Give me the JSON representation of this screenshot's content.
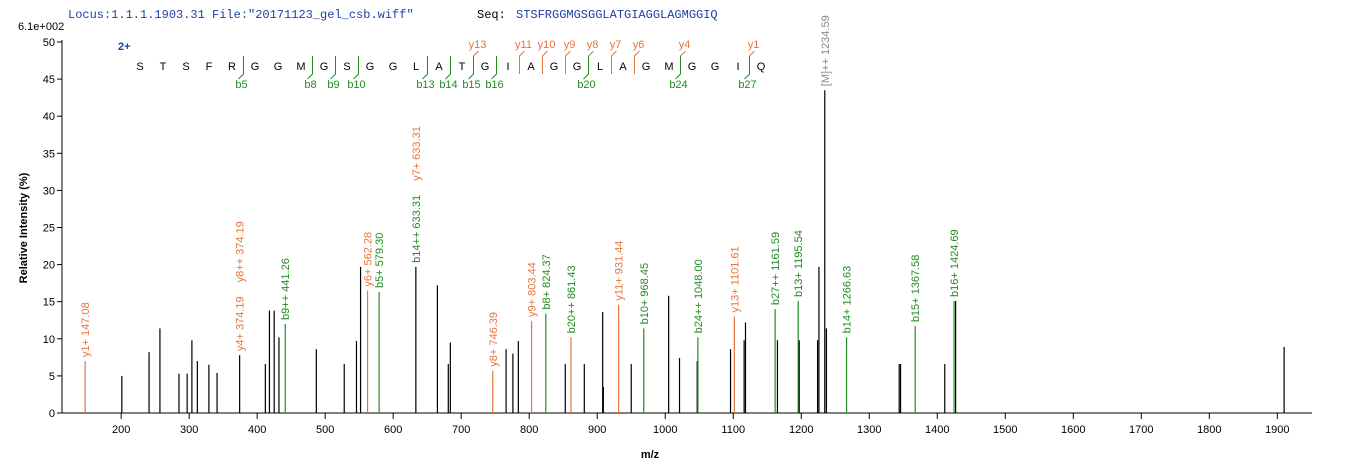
{
  "header": {
    "locus": "Locus:1.1.1.1903.31 File:\"20171123_gel_csb.wiff\"",
    "seq_label": "Seq:",
    "seq": "STSFRGGMGSGGLATGIAGGLAGMGGIQ"
  },
  "chart_data": {
    "type": "spectrum",
    "y_scale_label": "6.1e+002",
    "xlabel": "m/z",
    "ylabel": "Relative   Intensity (%)",
    "xlim": [
      113,
      1951
    ],
    "ylim": [
      0,
      50
    ],
    "xticks": [
      200,
      300,
      400,
      500,
      600,
      700,
      800,
      900,
      1000,
      1100,
      1200,
      1300,
      1400,
      1500,
      1600,
      1700,
      1800,
      1900
    ],
    "yticks": [
      0,
      5,
      10,
      15,
      20,
      25,
      30,
      35,
      40,
      45,
      50
    ],
    "x": [
      147.08,
      201,
      241,
      257,
      285,
      297,
      304,
      312,
      329,
      341,
      374.19,
      412,
      418,
      425,
      432,
      441.26,
      487,
      528,
      546,
      552,
      562.28,
      579.3,
      633.31,
      665,
      681,
      684,
      746.39,
      766,
      776,
      784,
      803.44,
      824.37,
      853,
      861.43,
      881,
      908,
      909,
      931.44,
      950,
      968.45,
      1005,
      1021,
      1047,
      1048.0,
      1096,
      1101.61,
      1116,
      1118,
      1161.59,
      1165,
      1195.54,
      1197,
      1224,
      1226,
      1234.59,
      1237,
      1266.63,
      1344,
      1346,
      1367.58,
      1411,
      1424.69,
      1427,
      1910
    ],
    "values": [
      7,
      5,
      8.2,
      11.4,
      5.3,
      5.3,
      9.8,
      7,
      6.5,
      5.4,
      7.8,
      6.6,
      13.8,
      13.8,
      10.2,
      12,
      8.6,
      6.6,
      9.7,
      19.7,
      16.5,
      16.3,
      19.7,
      17.2,
      6.6,
      9.5,
      5.7,
      8.6,
      8,
      9.7,
      12.4,
      13.4,
      6.6,
      10.2,
      6.6,
      13.6,
      3.5,
      14.6,
      6.6,
      11.4,
      15.8,
      7.4,
      7,
      10.2,
      8.6,
      13,
      9.8,
      12.2,
      14,
      9.8,
      15.1,
      9.8,
      9.8,
      19.7,
      43.5,
      11.4,
      10.2,
      6.6,
      6.6,
      11.7,
      6.6,
      15.1,
      15.1,
      8.9
    ],
    "colors": [
      "#e8743b",
      "#000000",
      "#000000",
      "#000000",
      "#000000",
      "#000000",
      "#000000",
      "#000000",
      "#000000",
      "#000000",
      "#000000",
      "#000000",
      "#000000",
      "#000000",
      "#000000",
      "#228b22",
      "#000000",
      "#000000",
      "#000000",
      "#000000",
      "#e8743b",
      "#228b22",
      "#000000",
      "#000000",
      "#000000",
      "#000000",
      "#e8743b",
      "#000000",
      "#000000",
      "#000000",
      "#e8743b",
      "#228b22",
      "#000000",
      "#e8743b",
      "#000000",
      "#000000",
      "#000000",
      "#e8743b",
      "#000000",
      "#228b22",
      "#000000",
      "#000000",
      "#000000",
      "#228b22",
      "#000000",
      "#e8743b",
      "#000000",
      "#000000",
      "#228b22",
      "#000000",
      "#228b22",
      "#000000",
      "#000000",
      "#000000",
      "#000000",
      "#000000",
      "#228b22",
      "#000000",
      "#000000",
      "#228b22",
      "#000000",
      "#228b22",
      "#000000",
      "#000000"
    ],
    "annotations": [
      [
        {
          "text": "y1+ 147.08",
          "color": "#e8743b"
        }
      ],
      [],
      [],
      [],
      [],
      [],
      [],
      [],
      [],
      [],
      [
        {
          "text": "y4+ 374.19",
          "color": "#e8743b"
        },
        {
          "text": "y8++ 374.19",
          "color": "#e8743b"
        }
      ],
      [],
      [],
      [],
      [],
      [
        {
          "text": "b9++ 441.26",
          "color": "#228b22"
        }
      ],
      [],
      [],
      [],
      [],
      [
        {
          "text": "y6+ 562.28",
          "color": "#e8743b"
        }
      ],
      [
        {
          "text": "b5+ 579.30",
          "color": "#228b22"
        }
      ],
      [
        {
          "text": "b14++ 633.31",
          "color": "#228b22"
        },
        {
          "text": "y7+ 633.31",
          "color": "#e8743b"
        }
      ],
      [],
      [],
      [],
      [
        {
          "text": "y8+ 746.39",
          "color": "#e8743b"
        }
      ],
      [],
      [],
      [],
      [
        {
          "text": "y9+ 803.44",
          "color": "#e8743b"
        }
      ],
      [
        {
          "text": "b8+ 824.37",
          "color": "#228b22"
        }
      ],
      [],
      [
        {
          "text": "b20++ 861.43",
          "color": "#228b22"
        }
      ],
      [],
      [],
      [],
      [
        {
          "text": "y11+ 931.44",
          "color": "#e8743b"
        }
      ],
      [],
      [
        {
          "text": "b10+ 968.45",
          "color": "#228b22"
        }
      ],
      [],
      [],
      [],
      [
        {
          "text": "b24++ 1048.00",
          "color": "#228b22"
        }
      ],
      [],
      [
        {
          "text": "y13+ 1101.61",
          "color": "#e8743b"
        }
      ],
      [],
      [],
      [
        {
          "text": "b27++ 1161.59",
          "color": "#228b22"
        }
      ],
      [],
      [
        {
          "text": "b13+ 1195.54",
          "color": "#228b22"
        }
      ],
      [],
      [],
      [],
      [
        {
          "text": "[M]++ 1234.59",
          "color": "#888888"
        }
      ],
      [],
      [
        {
          "text": "b14+ 1266.63",
          "color": "#228b22"
        }
      ],
      [],
      [],
      [
        {
          "text": "b15+ 1367.58",
          "color": "#228b22"
        }
      ],
      [],
      [
        {
          "text": "b16+ 1424.69",
          "color": "#228b22"
        }
      ],
      [],
      []
    ],
    "sequence": {
      "charge": "2+",
      "residues": [
        "S",
        "T",
        "S",
        "F",
        "R",
        "G",
        "G",
        "M",
        "G",
        "S",
        "G",
        "G",
        "L",
        "A",
        "T",
        "G",
        "I",
        "A",
        "G",
        "G",
        "L",
        "A",
        "G",
        "M",
        "G",
        "G",
        "I",
        "Q"
      ],
      "y_ions": [
        "y13",
        "y11",
        "y10",
        "y9",
        "y8",
        "y7",
        "y6",
        "y4",
        "y1"
      ],
      "b_ions": [
        "b5",
        "b8",
        "b9",
        "b10",
        "b13",
        "b14",
        "b15",
        "b16",
        "b20",
        "b24",
        "b27"
      ],
      "y_color": "#e8743b",
      "b_color": "#228b22"
    }
  }
}
